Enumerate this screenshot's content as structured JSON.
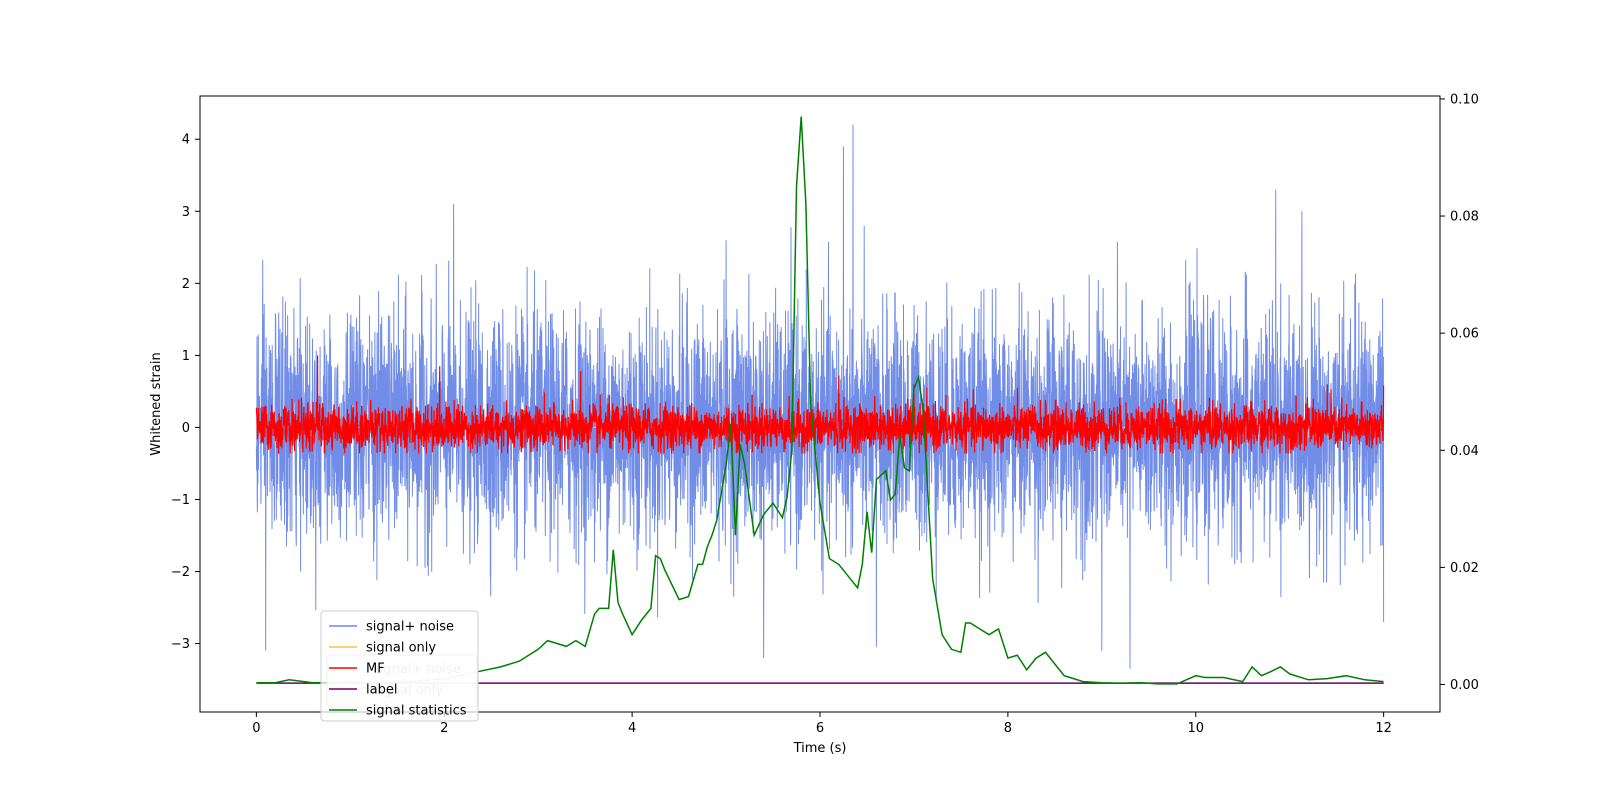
{
  "chart_data": {
    "type": "line",
    "title": "",
    "xlabel": "Time (s)",
    "ylabel": "Whitened strain",
    "ylabel_right": "",
    "xlim": [
      -0.6,
      12.6
    ],
    "ylim": [
      -3.95,
      4.6
    ],
    "ylim_right": [
      -0.0047,
      0.1005
    ],
    "x_ticks": [
      0,
      2,
      4,
      6,
      8,
      10,
      12
    ],
    "y_ticks": [
      -3,
      -2,
      -1,
      0,
      1,
      2,
      3,
      4
    ],
    "y_ticks_right": [
      0.0,
      0.02,
      0.04,
      0.06,
      0.08,
      0.1
    ],
    "grid": false,
    "legend": {
      "placement": "lower-left",
      "entries": [
        {
          "name": "signal+ noise",
          "color": "#6a87e6"
        },
        {
          "name": "signal only",
          "color": "#ffbf40"
        },
        {
          "name": "MF",
          "color": "#ff0000"
        },
        {
          "name": "label",
          "color": "#6a006a"
        },
        {
          "name": "signal statistics",
          "color": "#008000"
        }
      ],
      "ghost_entries": [
        {
          "name": "signal+ noise"
        },
        {
          "name": "signal only"
        }
      ]
    },
    "series": [
      {
        "name": "signal+ noise",
        "color": "#6a87e6",
        "axis": "left",
        "t_range": [
          0,
          12
        ],
        "typical_amplitude": 1.2,
        "max": 4.2,
        "min": -3.3,
        "notable_spikes": [
          [
            0.1,
            2.6
          ],
          [
            0.1,
            -3.1
          ],
          [
            2.1,
            3.1
          ],
          [
            5.0,
            2.6
          ],
          [
            6.35,
            4.2
          ],
          [
            6.25,
            3.9
          ],
          [
            10.85,
            3.3
          ],
          [
            9.3,
            -3.35
          ],
          [
            5.4,
            -3.2
          ],
          [
            6.6,
            -3.05
          ],
          [
            9.0,
            -3.1
          ],
          [
            12.0,
            -2.7
          ]
        ]
      },
      {
        "name": "signal only",
        "color": "#ffbf40",
        "axis": "left",
        "x": [
          0,
          12
        ],
        "y": [
          0,
          0
        ]
      },
      {
        "name": "MF",
        "color": "#ff0000",
        "axis": "left",
        "t_range": [
          0,
          12
        ],
        "typical_amplitude": 0.35,
        "notable_spikes": [
          [
            0.65,
            1.0
          ],
          [
            1.95,
            0.85
          ],
          [
            3.45,
            0.78
          ],
          [
            6.2,
            0.72
          ],
          [
            7.0,
            0.6
          ],
          [
            11.4,
            0.6
          ],
          [
            12.0,
            0.58
          ]
        ]
      },
      {
        "name": "label",
        "color": "#6a006a",
        "axis": "left",
        "x": [
          0,
          12
        ],
        "y": [
          -3.55,
          -3.55
        ]
      },
      {
        "name": "signal statistics",
        "color": "#008000",
        "axis": "right",
        "x": [
          0,
          0.2,
          0.35,
          0.6,
          1.0,
          1.5,
          2.0,
          2.3,
          2.6,
          2.8,
          3.0,
          3.1,
          3.2,
          3.3,
          3.4,
          3.5,
          3.6,
          3.65,
          3.75,
          3.8,
          3.85,
          3.9,
          4.0,
          4.1,
          4.2,
          4.25,
          4.3,
          4.35,
          4.5,
          4.6,
          4.7,
          4.75,
          4.8,
          4.85,
          4.9,
          5.0,
          5.05,
          5.1,
          5.15,
          5.2,
          5.3,
          5.4,
          5.5,
          5.6,
          5.65,
          5.7,
          5.75,
          5.8,
          5.85,
          5.9,
          6.0,
          6.1,
          6.2,
          6.3,
          6.4,
          6.45,
          6.5,
          6.55,
          6.6,
          6.7,
          6.75,
          6.8,
          6.85,
          6.9,
          6.95,
          7.0,
          7.05,
          7.1,
          7.2,
          7.3,
          7.4,
          7.5,
          7.55,
          7.6,
          7.7,
          7.8,
          7.9,
          8.0,
          8.1,
          8.2,
          8.3,
          8.4,
          8.5,
          8.6,
          8.7,
          8.8,
          9.0,
          9.2,
          9.4,
          9.6,
          9.8,
          10.0,
          10.1,
          10.3,
          10.5,
          10.6,
          10.7,
          10.8,
          10.9,
          11.0,
          11.2,
          11.4,
          11.6,
          11.8,
          12.0
        ],
        "y": [
          0.0003,
          0.0003,
          0.0008,
          0.0003,
          0.0004,
          0.0003,
          0.001,
          0.002,
          0.003,
          0.004,
          0.006,
          0.0075,
          0.007,
          0.0065,
          0.0075,
          0.0065,
          0.012,
          0.013,
          0.013,
          0.023,
          0.014,
          0.012,
          0.0085,
          0.011,
          0.013,
          0.022,
          0.0215,
          0.0195,
          0.0145,
          0.015,
          0.0205,
          0.0205,
          0.0235,
          0.0255,
          0.028,
          0.0375,
          0.0445,
          0.0255,
          0.041,
          0.0375,
          0.0255,
          0.029,
          0.031,
          0.0285,
          0.032,
          0.04,
          0.085,
          0.097,
          0.082,
          0.048,
          0.031,
          0.0215,
          0.0205,
          0.0185,
          0.0165,
          0.0205,
          0.0295,
          0.0225,
          0.035,
          0.0365,
          0.0315,
          0.0325,
          0.0425,
          0.037,
          0.0365,
          0.0505,
          0.0525,
          0.0465,
          0.018,
          0.0085,
          0.006,
          0.0055,
          0.0105,
          0.0105,
          0.0095,
          0.0085,
          0.0095,
          0.0045,
          0.005,
          0.0025,
          0.0045,
          0.0055,
          0.0035,
          0.0015,
          0.001,
          0.0005,
          0.0003,
          0.0002,
          0.0003,
          0.0001,
          0.0001,
          0.0015,
          0.0012,
          0.0012,
          0.0005,
          0.003,
          0.0015,
          0.0022,
          0.003,
          0.0018,
          0.0008,
          0.001,
          0.0015,
          0.0008,
          0.0005
        ]
      }
    ]
  }
}
